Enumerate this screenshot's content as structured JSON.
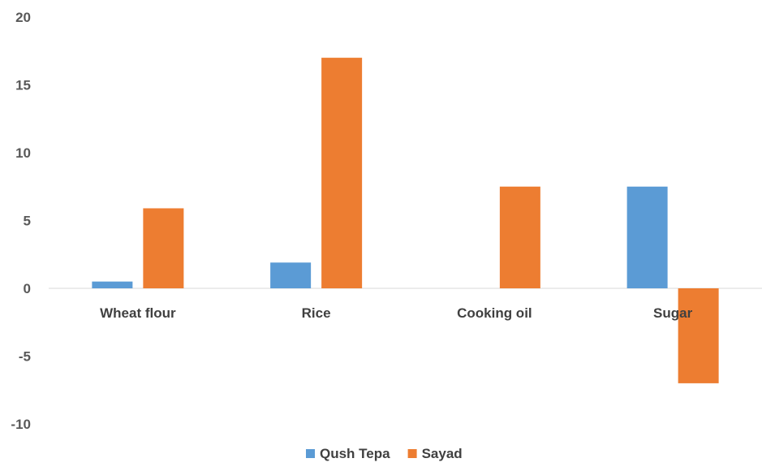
{
  "chart_data": {
    "type": "bar",
    "categories": [
      "Wheat flour",
      "Rice",
      "Cooking oil",
      "Sugar"
    ],
    "series": [
      {
        "name": "Qush Tepa",
        "color": "#5B9BD5",
        "values": [
          0.5,
          1.9,
          0,
          7.5
        ]
      },
      {
        "name": "Sayad",
        "color": "#ED7D31",
        "values": [
          5.9,
          17,
          7.5,
          -7
        ]
      }
    ],
    "ylim": [
      -10,
      20
    ],
    "yticks": [
      20,
      15,
      10,
      5,
      0,
      -5,
      -10
    ],
    "grid": false,
    "legend_position": "bottom"
  }
}
